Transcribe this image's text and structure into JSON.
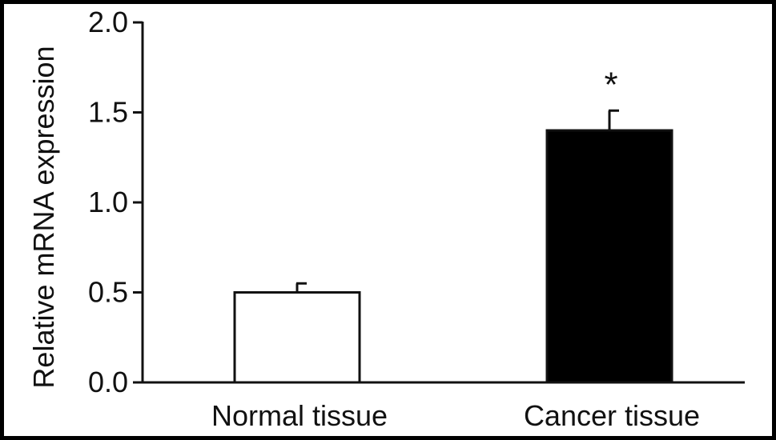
{
  "chart_data": {
    "type": "bar",
    "title": "",
    "xlabel": "",
    "ylabel": "Relative mRNA expression",
    "ylim": [
      0,
      2.0
    ],
    "yticks": [
      "0.0",
      "0.5",
      "1.0",
      "1.5",
      "2.0"
    ],
    "categories": [
      "Normal tissue",
      "Cancer tissue"
    ],
    "values": [
      0.5,
      1.4
    ],
    "errors": [
      0.05,
      0.11
    ],
    "bar_colors": [
      "#ffffff",
      "#000000"
    ],
    "annotations": [
      "",
      "*"
    ],
    "grid": false,
    "legend": "none"
  }
}
